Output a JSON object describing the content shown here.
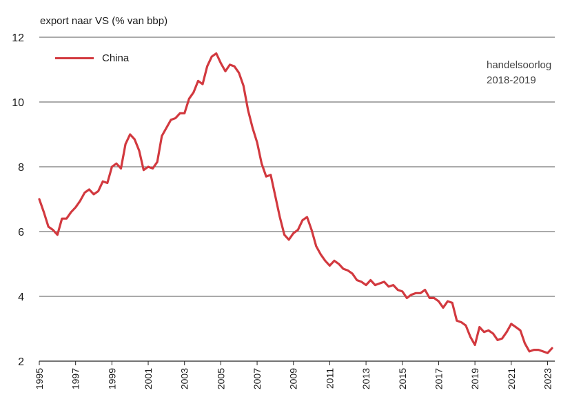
{
  "chart_data": {
    "type": "line",
    "ylabel": "export naar VS (% van bbp)",
    "ylim": [
      2,
      12
    ],
    "xlim": [
      1995,
      2023.4
    ],
    "yticks": [
      2,
      4,
      6,
      8,
      10,
      12
    ],
    "xticks": [
      "1995",
      "1997",
      "1999",
      "2001",
      "2003",
      "2005",
      "2007",
      "2009",
      "2011",
      "2013",
      "2015",
      "2017",
      "2019",
      "2021",
      "2023"
    ],
    "grid": "horizontal",
    "legend_position": "top-left",
    "annotation": [
      "handelsoorlog",
      "2018-2019"
    ],
    "series": [
      {
        "name": "China",
        "color": "#d2393f",
        "x": [
          1995.0,
          1995.25,
          1995.5,
          1995.75,
          1996.0,
          1996.25,
          1996.5,
          1996.75,
          1997.0,
          1997.25,
          1997.5,
          1997.75,
          1998.0,
          1998.25,
          1998.5,
          1998.75,
          1999.0,
          1999.25,
          1999.5,
          1999.75,
          2000.0,
          2000.25,
          2000.5,
          2000.75,
          2001.0,
          2001.25,
          2001.5,
          2001.75,
          2002.0,
          2002.25,
          2002.5,
          2002.75,
          2003.0,
          2003.25,
          2003.5,
          2003.75,
          2004.0,
          2004.25,
          2004.5,
          2004.75,
          2005.0,
          2005.25,
          2005.5,
          2005.75,
          2006.0,
          2006.25,
          2006.5,
          2006.75,
          2007.0,
          2007.25,
          2007.5,
          2007.75,
          2008.0,
          2008.25,
          2008.5,
          2008.75,
          2009.0,
          2009.25,
          2009.5,
          2009.75,
          2010.0,
          2010.25,
          2010.5,
          2010.75,
          2011.0,
          2011.25,
          2011.5,
          2011.75,
          2012.0,
          2012.25,
          2012.5,
          2012.75,
          2013.0,
          2013.25,
          2013.5,
          2013.75,
          2014.0,
          2014.25,
          2014.5,
          2014.75,
          2015.0,
          2015.25,
          2015.5,
          2015.75,
          2016.0,
          2016.25,
          2016.5,
          2016.75,
          2017.0,
          2017.25,
          2017.5,
          2017.75,
          2018.0,
          2018.25,
          2018.5,
          2018.75,
          2019.0,
          2019.25,
          2019.5,
          2019.75,
          2020.0,
          2020.25,
          2020.5,
          2020.75,
          2021.0,
          2021.25,
          2021.5,
          2021.75,
          2022.0,
          2022.25,
          2022.5,
          2022.75,
          2023.0,
          2023.25
        ],
        "values": [
          7.0,
          6.6,
          6.15,
          6.05,
          5.9,
          6.4,
          6.4,
          6.6,
          6.75,
          6.95,
          7.2,
          7.3,
          7.15,
          7.25,
          7.55,
          7.5,
          8.0,
          8.1,
          7.95,
          8.7,
          9.0,
          8.85,
          8.5,
          7.9,
          8.0,
          7.95,
          8.15,
          8.95,
          9.2,
          9.45,
          9.5,
          9.65,
          9.65,
          10.1,
          10.3,
          10.65,
          10.55,
          11.1,
          11.4,
          11.5,
          11.2,
          10.95,
          11.15,
          11.1,
          10.9,
          10.5,
          9.75,
          9.2,
          8.75,
          8.1,
          7.7,
          7.75,
          7.1,
          6.45,
          5.9,
          5.75,
          5.95,
          6.05,
          6.35,
          6.45,
          6.05,
          5.55,
          5.3,
          5.1,
          4.95,
          5.1,
          5.0,
          4.85,
          4.8,
          4.7,
          4.5,
          4.45,
          4.35,
          4.5,
          4.35,
          4.4,
          4.45,
          4.3,
          4.35,
          4.2,
          4.15,
          3.95,
          4.05,
          4.1,
          4.1,
          4.2,
          3.95,
          3.95,
          3.85,
          3.65,
          3.85,
          3.8,
          3.25,
          3.2,
          3.1,
          2.75,
          2.5,
          3.05,
          2.9,
          2.95,
          2.85,
          2.65,
          2.7,
          2.9,
          3.15,
          3.05,
          2.95,
          2.55,
          2.3,
          2.35,
          2.35,
          2.3,
          2.25,
          2.4
        ]
      }
    ]
  }
}
